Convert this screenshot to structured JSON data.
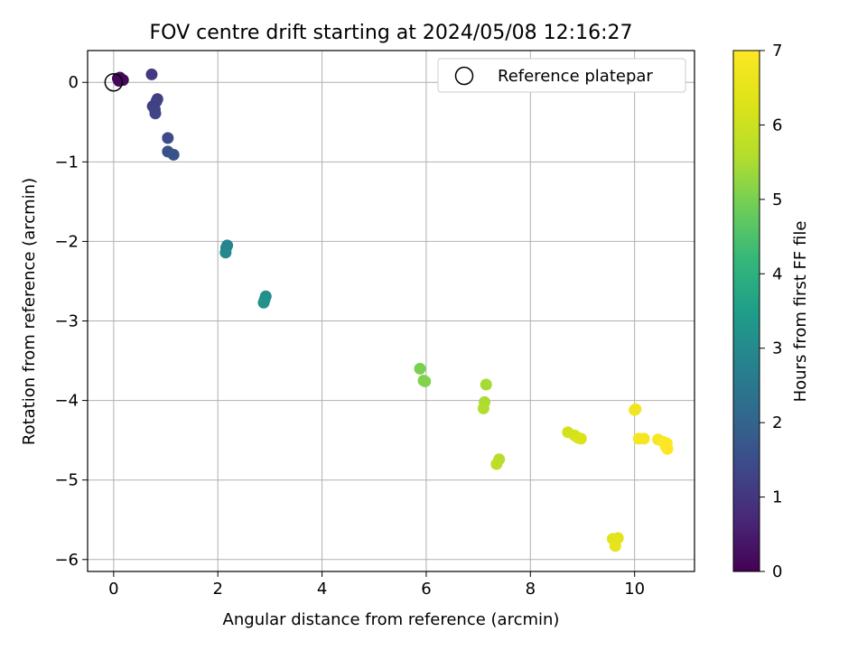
{
  "chart_data": {
    "type": "scatter",
    "title": "FOV centre drift starting at 2024/05/08 12:16:27",
    "xlabel": "Angular distance from reference (arcmin)",
    "ylabel": "Rotation from reference (arcmin)",
    "xlim": [
      -0.5,
      11.15
    ],
    "ylim": [
      -6.15,
      0.4
    ],
    "xticks": [
      0,
      2,
      4,
      6,
      8,
      10
    ],
    "yticks": [
      0,
      -1,
      -2,
      -3,
      -4,
      -5,
      -6
    ],
    "grid": true,
    "legend": {
      "placement": "top-right",
      "entries": [
        "Reference platepar"
      ]
    },
    "reference_point": {
      "label": "Reference platepar",
      "x": 0,
      "y": 0,
      "marker": "hollow-circle"
    },
    "colorbar": {
      "label": "Hours from first FF file",
      "colormap": "viridis",
      "range": [
        0,
        7
      ],
      "ticks": [
        0,
        1,
        2,
        3,
        4,
        5,
        6,
        7
      ]
    },
    "series": [
      {
        "name": "FOV centre drift",
        "points": [
          {
            "x": 0.08,
            "y": 0.05,
            "hours": 0.05
          },
          {
            "x": 0.1,
            "y": 0.02,
            "hours": 0.1
          },
          {
            "x": 0.15,
            "y": 0.03,
            "hours": 0.15
          },
          {
            "x": 0.18,
            "y": 0.03,
            "hours": 0.2
          },
          {
            "x": 0.12,
            "y": 0.06,
            "hours": 0.1
          },
          {
            "x": 0.73,
            "y": 0.1,
            "hours": 1.05
          },
          {
            "x": 0.84,
            "y": -0.21,
            "hours": 1.15
          },
          {
            "x": 0.82,
            "y": -0.24,
            "hours": 1.2
          },
          {
            "x": 0.75,
            "y": -0.3,
            "hours": 1.2
          },
          {
            "x": 0.79,
            "y": -0.34,
            "hours": 1.25
          },
          {
            "x": 0.8,
            "y": -0.39,
            "hours": 1.3
          },
          {
            "x": 1.04,
            "y": -0.7,
            "hours": 1.45
          },
          {
            "x": 1.04,
            "y": -0.87,
            "hours": 1.55
          },
          {
            "x": 1.15,
            "y": -0.91,
            "hours": 1.6
          },
          {
            "x": 2.18,
            "y": -2.05,
            "hours": 2.85
          },
          {
            "x": 2.16,
            "y": -2.08,
            "hours": 2.9
          },
          {
            "x": 2.15,
            "y": -2.14,
            "hours": 2.95
          },
          {
            "x": 2.92,
            "y": -2.69,
            "hours": 3.1
          },
          {
            "x": 2.9,
            "y": -2.73,
            "hours": 3.15
          },
          {
            "x": 2.88,
            "y": -2.77,
            "hours": 3.2
          },
          {
            "x": 5.88,
            "y": -3.6,
            "hours": 5.0
          },
          {
            "x": 5.95,
            "y": -3.75,
            "hours": 5.05
          },
          {
            "x": 5.98,
            "y": -3.76,
            "hours": 5.1
          },
          {
            "x": 7.15,
            "y": -3.8,
            "hours": 5.45
          },
          {
            "x": 7.12,
            "y": -4.02,
            "hours": 5.5
          },
          {
            "x": 7.1,
            "y": -4.1,
            "hours": 5.55
          },
          {
            "x": 7.4,
            "y": -4.74,
            "hours": 5.65
          },
          {
            "x": 7.35,
            "y": -4.8,
            "hours": 5.7
          },
          {
            "x": 8.72,
            "y": -4.4,
            "hours": 6.1
          },
          {
            "x": 8.85,
            "y": -4.44,
            "hours": 6.15
          },
          {
            "x": 8.92,
            "y": -4.47,
            "hours": 6.2
          },
          {
            "x": 8.97,
            "y": -4.48,
            "hours": 6.25
          },
          {
            "x": 9.58,
            "y": -5.74,
            "hours": 6.4
          },
          {
            "x": 9.68,
            "y": -5.73,
            "hours": 6.45
          },
          {
            "x": 9.63,
            "y": -5.83,
            "hours": 6.5
          },
          {
            "x": 10.0,
            "y": -4.12,
            "hours": 6.7
          },
          {
            "x": 10.02,
            "y": -4.11,
            "hours": 6.72
          },
          {
            "x": 10.08,
            "y": -4.48,
            "hours": 6.8
          },
          {
            "x": 10.18,
            "y": -4.48,
            "hours": 6.85
          },
          {
            "x": 10.45,
            "y": -4.49,
            "hours": 6.9
          },
          {
            "x": 10.55,
            "y": -4.52,
            "hours": 6.95
          },
          {
            "x": 10.62,
            "y": -4.54,
            "hours": 6.97
          },
          {
            "x": 10.6,
            "y": -4.58,
            "hours": 6.98
          },
          {
            "x": 10.63,
            "y": -4.61,
            "hours": 7.0
          }
        ]
      }
    ]
  }
}
